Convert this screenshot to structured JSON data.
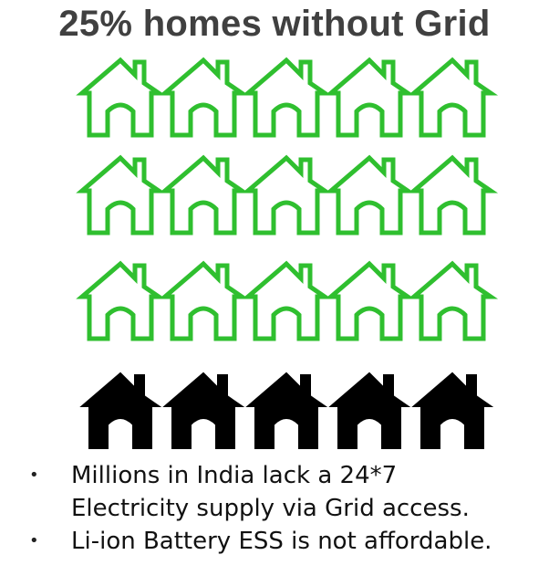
{
  "title": "25% homes without Grid",
  "infographic": {
    "total_homes": 20,
    "homes_with_grid": 15,
    "homes_without_grid": 5,
    "columns": 5,
    "with_grid_color": "#2fbf2f",
    "without_grid_color": "#000000",
    "icon": "house-icon"
  },
  "bullets": [
    {
      "line1": "Millions in India lack a 24*7",
      "line2": "Electricity supply via Grid access."
    },
    {
      "line1": "Li-ion Battery ESS is not affordable.",
      "line2": ""
    }
  ]
}
